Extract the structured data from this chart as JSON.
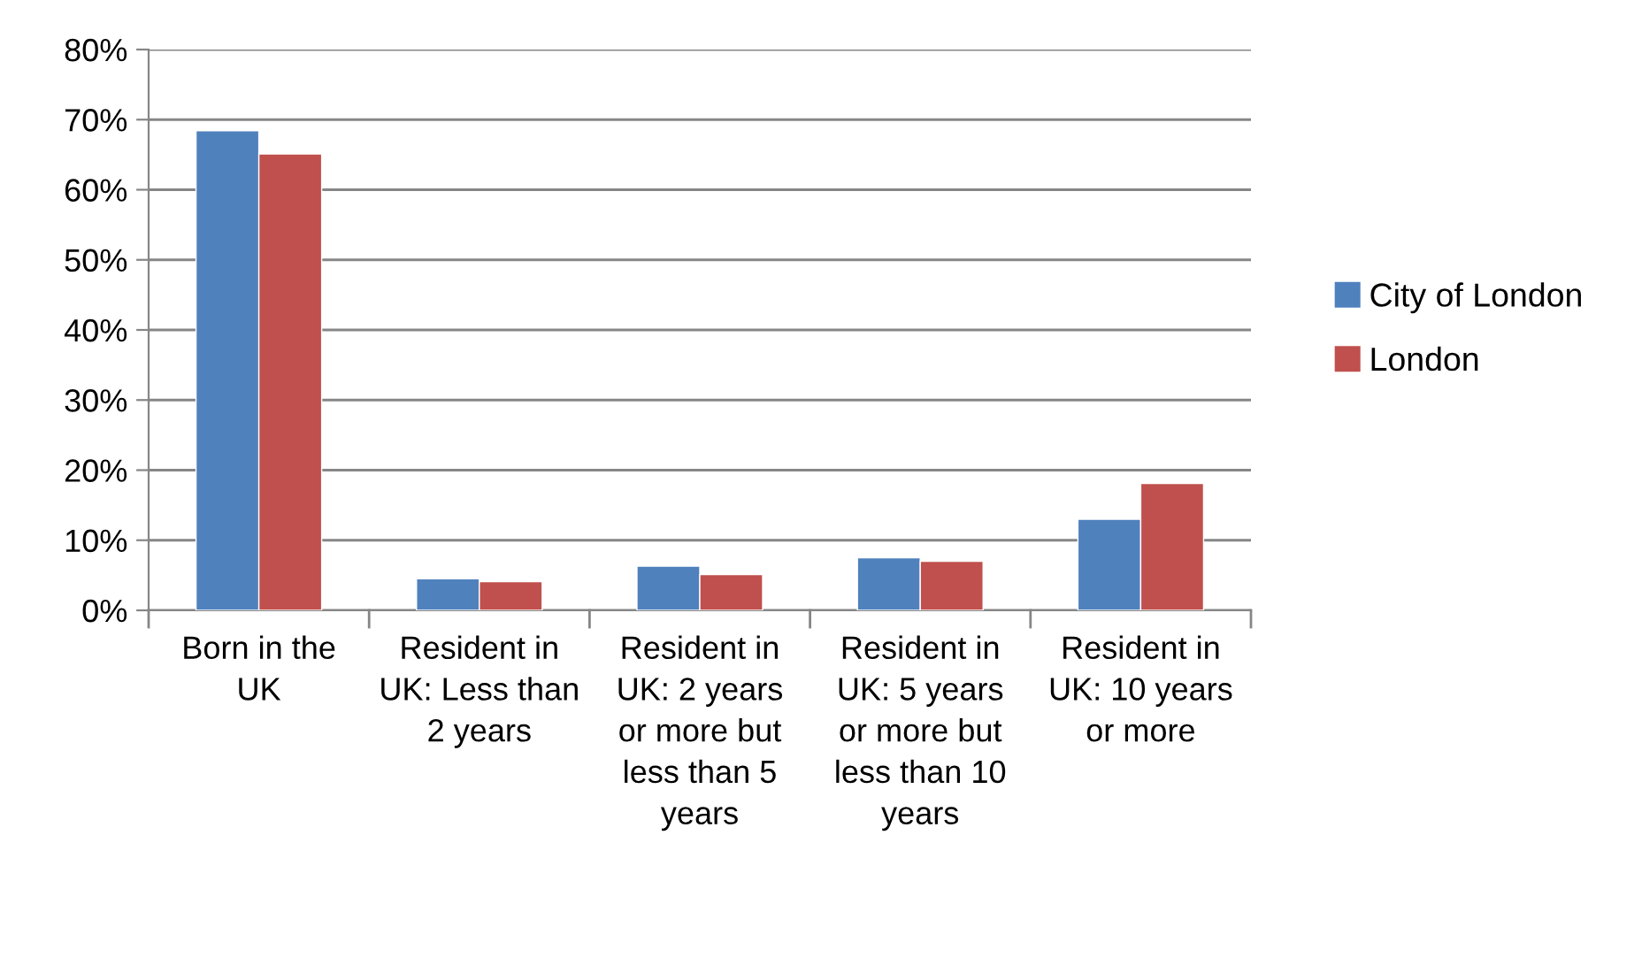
{
  "chart_data": {
    "type": "bar",
    "categories": [
      "Born in the UK",
      "Resident in UK: Less than 2 years",
      "Resident in UK: 2 years or more but less than 5 years",
      "Resident in UK: 5 years or more but less than 10 years",
      "Resident in UK: 10 years or more"
    ],
    "series": [
      {
        "name": "City of London",
        "color": "#4f81bd",
        "values": [
          68.4,
          4.5,
          6.3,
          7.5,
          13.0
        ]
      },
      {
        "name": "London",
        "color": "#c0504d",
        "values": [
          65.1,
          4.1,
          5.1,
          7.0,
          18.1
        ]
      }
    ],
    "ylim": [
      0,
      80
    ],
    "yticks": [
      {
        "value": 0,
        "label": "0%"
      },
      {
        "value": 10,
        "label": "10%"
      },
      {
        "value": 20,
        "label": "20%"
      },
      {
        "value": 30,
        "label": "30%"
      },
      {
        "value": 40,
        "label": "40%"
      },
      {
        "value": 50,
        "label": "50%"
      },
      {
        "value": 60,
        "label": "60%"
      },
      {
        "value": 70,
        "label": "70%"
      },
      {
        "value": 80,
        "label": "80%"
      }
    ],
    "grid": "y",
    "legend": "right"
  }
}
